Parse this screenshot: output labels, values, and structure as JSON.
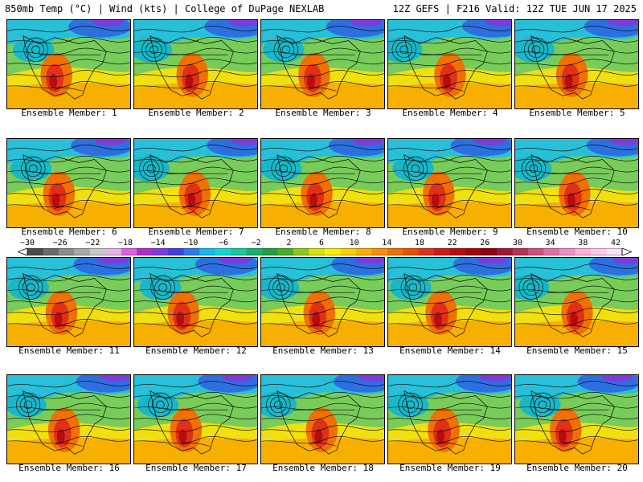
{
  "header": {
    "left_title": "850mb Temp (°C) | Wind (kts) | College of DuPage NEXLAB",
    "right_title": "12Z GEFS | F216 Valid: 12Z TUE JUN 17 2025"
  },
  "colorbar": {
    "labels": [
      "−30",
      "−26",
      "−22",
      "−18",
      "−14",
      "−10",
      "−6",
      "−2",
      "2",
      "6",
      "10",
      "14",
      "18",
      "22",
      "26",
      "30",
      "34",
      "38",
      "42"
    ],
    "colors": [
      "#4a4a4a",
      "#6b6b6b",
      "#8c8c8c",
      "#a8a8a8",
      "#c8c8c8",
      "#e6b4e6",
      "#e060e0",
      "#b02cd0",
      "#7c3cdc",
      "#4040e0",
      "#2c7ce8",
      "#18b8f0",
      "#10d8d0",
      "#18c8a0",
      "#18b070",
      "#20a040",
      "#48b020",
      "#90c818",
      "#d8e010",
      "#f8f000",
      "#f8d000",
      "#f8b000",
      "#f89000",
      "#f07000",
      "#e85000",
      "#e03018",
      "#d01818",
      "#b80c10",
      "#a00808",
      "#900010",
      "#a01838",
      "#b83058",
      "#d05080",
      "#e070a0",
      "#f090c0",
      "#ffb0d8",
      "#ffc8e8",
      "#ffe0f0"
    ],
    "accent_red": "#e02010",
    "accent_blue": "#2c3ce0"
  },
  "members": [
    {
      "label": "Ensemble Member: 1"
    },
    {
      "label": "Ensemble Member: 2"
    },
    {
      "label": "Ensemble Member: 3"
    },
    {
      "label": "Ensemble Member: 4"
    },
    {
      "label": "Ensemble Member: 5"
    },
    {
      "label": "Ensemble Member: 6"
    },
    {
      "label": "Ensemble Member: 7"
    },
    {
      "label": "Ensemble Member: 8"
    },
    {
      "label": "Ensemble Member: 9"
    },
    {
      "label": "Ensemble Member: 10"
    },
    {
      "label": "Ensemble Member: 11"
    },
    {
      "label": "Ensemble Member: 12"
    },
    {
      "label": "Ensemble Member: 13"
    },
    {
      "label": "Ensemble Member: 14"
    },
    {
      "label": "Ensemble Member: 15"
    },
    {
      "label": "Ensemble Member: 16"
    },
    {
      "label": "Ensemble Member: 17"
    },
    {
      "label": "Ensemble Member: 18"
    },
    {
      "label": "Ensemble Member: 19"
    },
    {
      "label": "Ensemble Member: 20"
    }
  ]
}
